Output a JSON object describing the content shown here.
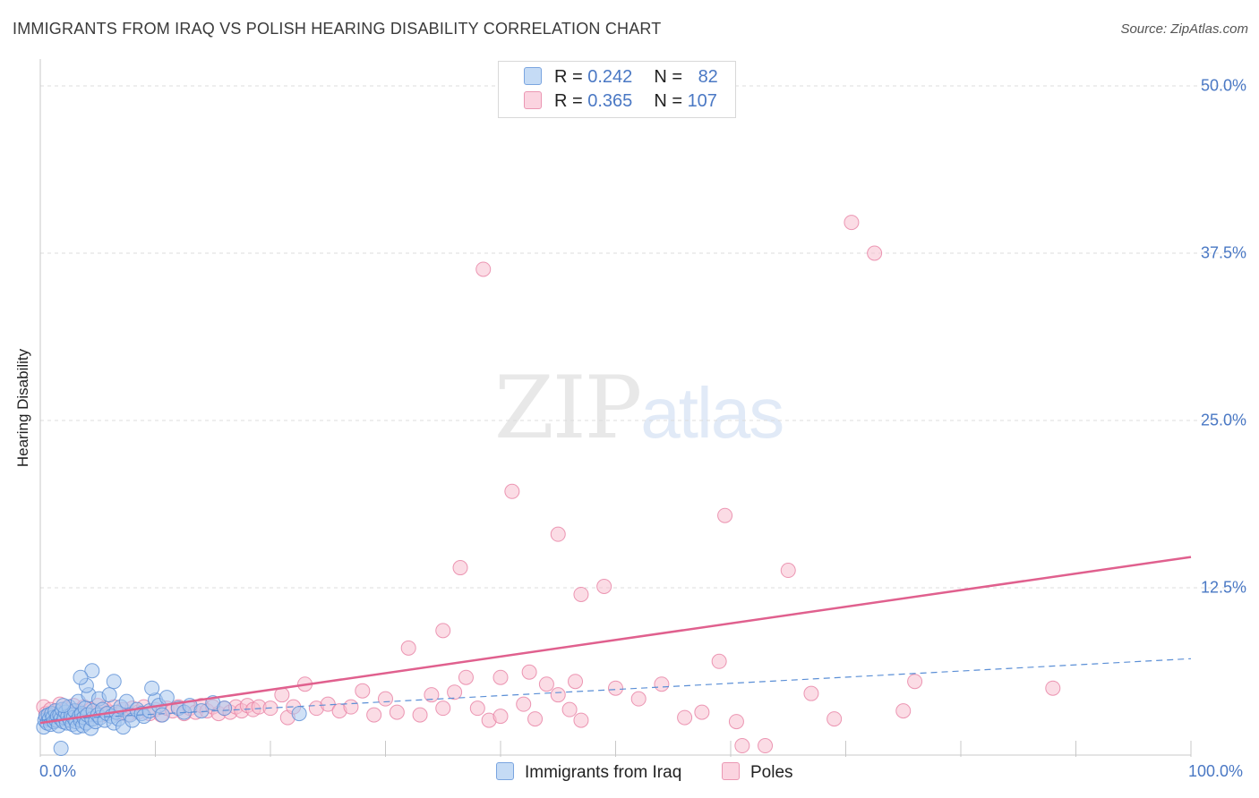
{
  "title": "IMMIGRANTS FROM IRAQ VS POLISH HEARING DISABILITY CORRELATION CHART",
  "source": "Source: ZipAtlas.com",
  "watermark": {
    "zip": "ZIP",
    "atlas": "atlas"
  },
  "legend_stats": [
    {
      "r_label": "R = ",
      "r_value": "0.242",
      "n_label": "N = ",
      "n_value": "82"
    },
    {
      "r_label": "R = ",
      "r_value": "0.365",
      "n_label": "N = ",
      "n_value": "107"
    }
  ],
  "colors": {
    "blue_fill": "#a9c8ef",
    "blue_stroke": "#5b8fd6",
    "blue_line": "#5b8fd6",
    "pink_fill": "#f7bfd0",
    "pink_stroke": "#e77fa2",
    "pink_line": "#e0608e",
    "tick_text": "#4a78c4",
    "grid": "#dcdcdc"
  },
  "chart_data": {
    "type": "scatter",
    "title": "IMMIGRANTS FROM IRAQ VS POLISH HEARING DISABILITY CORRELATION CHART",
    "xlabel": "",
    "ylabel": "Hearing Disability",
    "xlim": [
      0,
      100
    ],
    "ylim": [
      0,
      50
    ],
    "x_tick_labels": [
      "0.0%",
      "100.0%"
    ],
    "y_ticks": [
      12.5,
      25.0,
      37.5,
      50.0
    ],
    "y_tick_labels": [
      "12.5%",
      "25.0%",
      "37.5%",
      "50.0%"
    ],
    "grid": true,
    "legend_position": "bottom",
    "series": [
      {
        "name": "Immigrants from Iraq",
        "color": "#a9c8ef",
        "trend": {
          "x": [
            0,
            100
          ],
          "y": [
            2.6,
            7.2
          ],
          "style": "dashed"
        },
        "points": [
          [
            0.3,
            2.1
          ],
          [
            0.4,
            2.6
          ],
          [
            0.5,
            2.9
          ],
          [
            0.6,
            2.4
          ],
          [
            0.7,
            3.0
          ],
          [
            0.8,
            2.7
          ],
          [
            0.9,
            2.3
          ],
          [
            1.0,
            3.1
          ],
          [
            1.1,
            2.8
          ],
          [
            1.2,
            2.5
          ],
          [
            1.3,
            3.3
          ],
          [
            1.4,
            2.6
          ],
          [
            1.5,
            2.9
          ],
          [
            1.6,
            2.2
          ],
          [
            1.7,
            3.0
          ],
          [
            1.8,
            2.7
          ],
          [
            1.9,
            3.4
          ],
          [
            2.0,
            2.5
          ],
          [
            2.1,
            2.8
          ],
          [
            2.2,
            3.2
          ],
          [
            2.3,
            2.4
          ],
          [
            2.4,
            2.9
          ],
          [
            2.5,
            3.6
          ],
          [
            2.6,
            2.6
          ],
          [
            2.7,
            3.0
          ],
          [
            2.8,
            2.3
          ],
          [
            2.9,
            2.8
          ],
          [
            3.0,
            3.3
          ],
          [
            3.1,
            2.5
          ],
          [
            3.2,
            2.1
          ],
          [
            3.3,
            4.0
          ],
          [
            3.4,
            2.9
          ],
          [
            3.5,
            2.6
          ],
          [
            3.6,
            3.1
          ],
          [
            3.7,
            2.2
          ],
          [
            3.8,
            2.8
          ],
          [
            3.9,
            3.5
          ],
          [
            4.0,
            2.4
          ],
          [
            4.1,
            3.0
          ],
          [
            4.2,
            4.5
          ],
          [
            4.4,
            2.0
          ],
          [
            4.5,
            2.7
          ],
          [
            4.6,
            3.3
          ],
          [
            4.8,
            2.5
          ],
          [
            5.0,
            3.0
          ],
          [
            5.1,
            4.2
          ],
          [
            5.2,
            2.8
          ],
          [
            5.4,
            3.4
          ],
          [
            5.6,
            2.6
          ],
          [
            5.8,
            3.1
          ],
          [
            6.0,
            4.5
          ],
          [
            6.2,
            2.9
          ],
          [
            6.4,
            2.4
          ],
          [
            6.6,
            3.2
          ],
          [
            6.8,
            2.7
          ],
          [
            7.0,
            3.6
          ],
          [
            7.2,
            2.1
          ],
          [
            7.5,
            4.0
          ],
          [
            7.8,
            3.0
          ],
          [
            8.0,
            2.6
          ],
          [
            8.4,
            3.4
          ],
          [
            8.8,
            3.1
          ],
          [
            9.0,
            2.9
          ],
          [
            9.5,
            3.3
          ],
          [
            10.0,
            4.1
          ],
          [
            10.3,
            3.7
          ],
          [
            10.6,
            3.0
          ],
          [
            11.0,
            4.3
          ],
          [
            12.0,
            3.5
          ],
          [
            12.5,
            3.2
          ],
          [
            13.0,
            3.7
          ],
          [
            14.0,
            3.3
          ],
          [
            15.0,
            3.9
          ],
          [
            16.0,
            3.5
          ],
          [
            22.5,
            3.1
          ],
          [
            1.8,
            0.5
          ],
          [
            4.0,
            5.2
          ],
          [
            4.5,
            6.3
          ],
          [
            3.5,
            5.8
          ],
          [
            9.7,
            5.0
          ],
          [
            6.4,
            5.5
          ],
          [
            2.0,
            3.7
          ]
        ]
      },
      {
        "name": "Poles",
        "color": "#f7bfd0",
        "trend": {
          "x": [
            0,
            100
          ],
          "y": [
            2.4,
            14.8
          ],
          "style": "solid"
        },
        "points": [
          [
            0.3,
            3.6
          ],
          [
            0.5,
            3.1
          ],
          [
            0.7,
            2.8
          ],
          [
            0.9,
            3.4
          ],
          [
            1.1,
            3.0
          ],
          [
            1.3,
            2.7
          ],
          [
            1.5,
            3.3
          ],
          [
            1.7,
            3.8
          ],
          [
            1.9,
            2.9
          ],
          [
            2.1,
            3.2
          ],
          [
            2.3,
            3.5
          ],
          [
            2.5,
            2.6
          ],
          [
            2.7,
            3.1
          ],
          [
            2.9,
            3.7
          ],
          [
            3.1,
            2.8
          ],
          [
            3.3,
            3.3
          ],
          [
            3.5,
            3.0
          ],
          [
            3.8,
            3.6
          ],
          [
            4.1,
            2.9
          ],
          [
            4.4,
            3.4
          ],
          [
            4.7,
            3.1
          ],
          [
            5.0,
            3.7
          ],
          [
            5.3,
            3.0
          ],
          [
            5.6,
            3.5
          ],
          [
            6.0,
            3.2
          ],
          [
            6.4,
            3.6
          ],
          [
            6.8,
            3.1
          ],
          [
            7.2,
            3.4
          ],
          [
            7.6,
            3.0
          ],
          [
            8.0,
            3.5
          ],
          [
            8.5,
            3.2
          ],
          [
            9.0,
            3.6
          ],
          [
            9.5,
            3.1
          ],
          [
            10.0,
            3.4
          ],
          [
            10.5,
            3.0
          ],
          [
            11.0,
            3.5
          ],
          [
            11.5,
            3.3
          ],
          [
            12.0,
            3.6
          ],
          [
            12.5,
            3.1
          ],
          [
            13.0,
            3.5
          ],
          [
            13.5,
            3.2
          ],
          [
            14.0,
            3.7
          ],
          [
            14.5,
            3.3
          ],
          [
            15.0,
            3.6
          ],
          [
            15.5,
            3.1
          ],
          [
            16.0,
            3.5
          ],
          [
            16.5,
            3.2
          ],
          [
            17.0,
            3.6
          ],
          [
            17.5,
            3.3
          ],
          [
            18.0,
            3.7
          ],
          [
            18.5,
            3.4
          ],
          [
            19.0,
            3.6
          ],
          [
            20.0,
            3.5
          ],
          [
            21.0,
            4.5
          ],
          [
            21.5,
            2.8
          ],
          [
            22.0,
            3.6
          ],
          [
            23.0,
            5.3
          ],
          [
            24.0,
            3.5
          ],
          [
            25.0,
            3.8
          ],
          [
            26.0,
            3.3
          ],
          [
            27.0,
            3.6
          ],
          [
            28.0,
            4.8
          ],
          [
            29.0,
            3.0
          ],
          [
            30.0,
            4.2
          ],
          [
            31.0,
            3.2
          ],
          [
            32.0,
            8.0
          ],
          [
            33.0,
            3.0
          ],
          [
            34.0,
            4.5
          ],
          [
            35.0,
            3.5
          ],
          [
            36.0,
            4.7
          ],
          [
            37.0,
            5.8
          ],
          [
            38.0,
            3.5
          ],
          [
            39.0,
            2.6
          ],
          [
            40.0,
            2.9
          ],
          [
            42.0,
            3.8
          ],
          [
            43.0,
            2.7
          ],
          [
            44.0,
            5.3
          ],
          [
            45.0,
            4.5
          ],
          [
            46.0,
            3.4
          ],
          [
            47.0,
            2.6
          ],
          [
            38.5,
            36.3
          ],
          [
            41.0,
            19.7
          ],
          [
            45.0,
            16.5
          ],
          [
            36.5,
            14.0
          ],
          [
            47.0,
            12.0
          ],
          [
            49.0,
            12.6
          ],
          [
            35.0,
            9.3
          ],
          [
            40.0,
            5.8
          ],
          [
            42.5,
            6.2
          ],
          [
            46.5,
            5.5
          ],
          [
            50.0,
            5.0
          ],
          [
            52.0,
            4.2
          ],
          [
            54.0,
            5.3
          ],
          [
            56.0,
            2.8
          ],
          [
            57.5,
            3.2
          ],
          [
            59.0,
            7.0
          ],
          [
            60.5,
            2.5
          ],
          [
            61.0,
            0.7
          ],
          [
            63.0,
            0.7
          ],
          [
            65.0,
            13.8
          ],
          [
            67.0,
            4.6
          ],
          [
            69.0,
            2.7
          ],
          [
            70.5,
            39.8
          ],
          [
            72.5,
            37.5
          ],
          [
            59.5,
            17.9
          ],
          [
            76.0,
            5.5
          ],
          [
            75.0,
            3.3
          ],
          [
            88.0,
            5.0
          ]
        ]
      }
    ]
  }
}
